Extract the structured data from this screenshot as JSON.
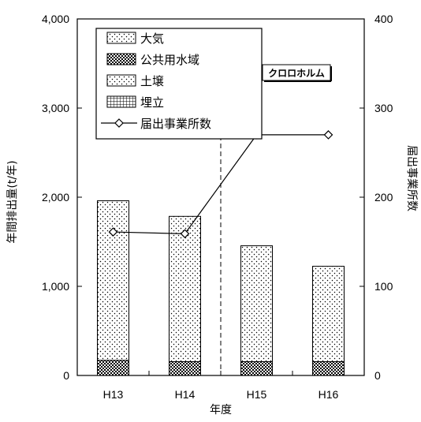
{
  "chart_data": {
    "type": "bar",
    "categories": [
      "H13",
      "H14",
      "H15",
      "H16"
    ],
    "xlabel": "年度",
    "ylabel": "年間排出量(t/年)",
    "ylabel_right": "届出事業所数",
    "ylim": [
      0,
      4000
    ],
    "ylim_right": [
      0,
      400
    ],
    "yticks": [
      "0",
      "1,000",
      "2,000",
      "3,000",
      "4,000"
    ],
    "yticks_right": [
      "0",
      "100",
      "200",
      "300",
      "400"
    ],
    "annotation": "クロロホルム",
    "divider_after_category": "H14",
    "legend_position": "top-left",
    "series": [
      {
        "name": "大気",
        "type": "bar",
        "values": [
          1790,
          1630,
          1300,
          1070
        ]
      },
      {
        "name": "公共用水域",
        "type": "bar",
        "values": [
          170,
          155,
          155,
          155
        ]
      },
      {
        "name": "土壌",
        "type": "bar",
        "values": [
          0,
          0,
          0,
          0
        ]
      },
      {
        "name": "埋立",
        "type": "bar",
        "values": [
          0,
          0,
          0,
          0
        ]
      },
      {
        "name": "届出事業所数",
        "type": "line",
        "axis": "right",
        "values": [
          161,
          159,
          270,
          270
        ]
      }
    ]
  }
}
